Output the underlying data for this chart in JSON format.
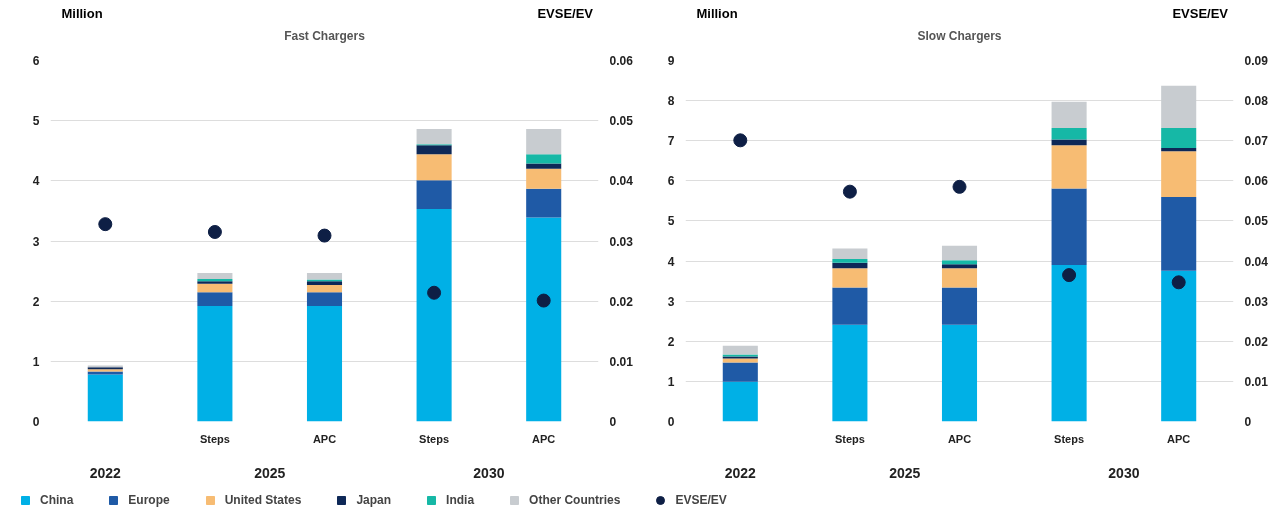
{
  "chart_data": [
    {
      "type": "bar",
      "title": "Fast Chargers",
      "ylabel": "Million",
      "y2label": "EVSE/EV",
      "categories": [
        null,
        "Steps",
        "APC",
        "Steps",
        "APC"
      ],
      "annotations": [
        "2022",
        "2025",
        "2030"
      ],
      "stacked": true,
      "grid": "y",
      "legend": "bottom",
      "ylim": [
        0,
        6
      ],
      "yticks": [
        0,
        1,
        2,
        3,
        4,
        5,
        6
      ],
      "y2lim": [
        0,
        0.06
      ],
      "y2ticks": [
        0,
        0.01,
        0.02,
        0.03,
        0.04,
        0.05,
        0.06
      ],
      "series": [
        {
          "name": "China",
          "color": "#00b0e6",
          "values": [
            0.78,
            1.92,
            1.92,
            3.53,
            3.39
          ]
        },
        {
          "name": "Europe",
          "color": "#1f5aa6",
          "values": [
            0.05,
            0.23,
            0.23,
            0.48,
            0.48
          ]
        },
        {
          "name": "United States",
          "color": "#f7bc73",
          "values": [
            0.04,
            0.14,
            0.12,
            0.43,
            0.33
          ]
        },
        {
          "name": "Japan",
          "color": "#0e2857",
          "values": [
            0.03,
            0.04,
            0.06,
            0.15,
            0.09
          ]
        },
        {
          "name": "India",
          "color": "#16b8a6",
          "values": [
            null,
            0.04,
            0.03,
            0.02,
            0.15
          ]
        },
        {
          "name": "Other Countries",
          "color": "#c8ccd0",
          "values": [
            0.03,
            0.1,
            0.11,
            0.25,
            0.42
          ]
        },
        {
          "name": "EVSE/EV",
          "type": "scatter",
          "axis": "y2",
          "marker": "circle",
          "color": "#0e1f45",
          "values": [
            0.0328,
            0.0315,
            0.0309,
            0.0214,
            0.0201
          ]
        }
      ]
    },
    {
      "type": "bar",
      "title": "Slow Chargers",
      "ylabel": "Million",
      "y2label": "EVSE/EV",
      "categories": [
        null,
        "Steps",
        "APC",
        "Steps",
        "APC"
      ],
      "annotations": [
        "2022",
        "2025",
        "2030"
      ],
      "stacked": true,
      "grid": "y",
      "ylim": [
        0,
        9
      ],
      "yticks": [
        0,
        1,
        2,
        3,
        4,
        5,
        6,
        7,
        8,
        9
      ],
      "y2lim": [
        0,
        0.09
      ],
      "y2ticks": [
        0,
        0.01,
        0.02,
        0.03,
        0.04,
        0.05,
        0.06,
        0.07,
        0.08,
        0.09
      ],
      "series": [
        {
          "color": "#00b0e6",
          "values": [
            0.99,
            2.41,
            2.41,
            3.9,
            3.76
          ]
        },
        {
          "color": "#1f5aa6",
          "values": [
            0.48,
            0.93,
            0.93,
            1.91,
            1.84
          ]
        },
        {
          "color": "#f7bc73",
          "values": [
            0.1,
            0.48,
            0.48,
            1.08,
            1.14
          ]
        },
        {
          "color": "#0e2857",
          "values": [
            0.05,
            0.14,
            0.1,
            0.14,
            0.08
          ]
        },
        {
          "color": "#16b8a6",
          "values": [
            0.05,
            0.09,
            0.1,
            0.29,
            0.5
          ]
        },
        {
          "color": "#c8ccd0",
          "values": [
            0.22,
            0.26,
            0.36,
            0.65,
            1.05
          ]
        },
        {
          "type": "scatter",
          "axis": "y2",
          "marker": "circle",
          "color": "#0e1f45",
          "values": [
            0.0701,
            0.0573,
            0.0585,
            0.0365,
            0.0347
          ]
        }
      ]
    }
  ]
}
